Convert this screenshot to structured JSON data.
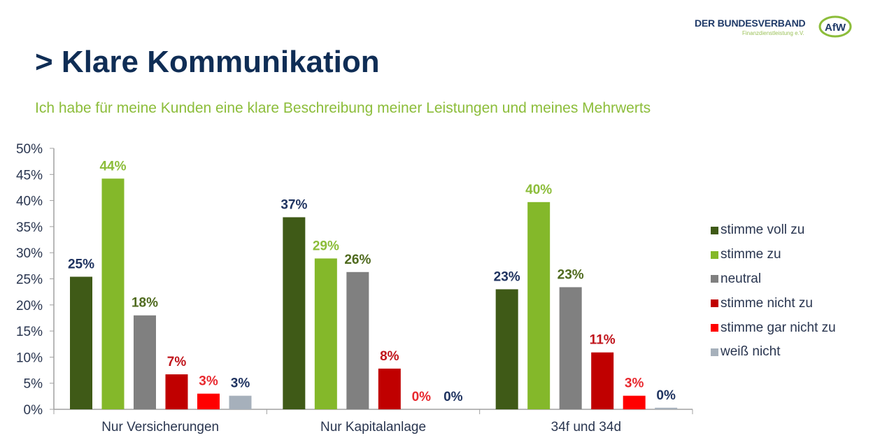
{
  "header": {
    "logo": {
      "main": "DER BUNDESVERBAND",
      "sub": "Finanzdienstleistung e.V.",
      "badge": "AfW"
    },
    "title": "> Klare Kommunikation",
    "subtitle": "Ich habe für meine Kunden eine klare Beschreibung meiner Leistungen und meines Mehrwerts"
  },
  "chart_data": {
    "type": "bar",
    "title": "",
    "xlabel": "",
    "ylabel": "",
    "ylim": [
      0,
      50
    ],
    "yticks": [
      "0%",
      "5%",
      "10%",
      "15%",
      "20%",
      "25%",
      "30%",
      "35%",
      "40%",
      "45%",
      "50%"
    ],
    "grid": false,
    "legend_position": "right",
    "categories": [
      "Nur Versicherungen",
      "Nur Kapitalanlage",
      "34f und 34d"
    ],
    "series": [
      {
        "name": "stimme voll zu",
        "color": "#3f5a17",
        "label_color": "#1f3360",
        "values": [
          25.4,
          36.8,
          23.0
        ],
        "labels": [
          "25%",
          "37%",
          "23%"
        ]
      },
      {
        "name": "stimme zu",
        "color": "#84b82a",
        "label_color": "#8cbd3a",
        "values": [
          44.2,
          28.9,
          39.7
        ],
        "labels": [
          "44%",
          "29%",
          "40%"
        ]
      },
      {
        "name": "neutral",
        "color": "#808080",
        "label_color": "#4f6a1e",
        "values": [
          18.0,
          26.3,
          23.4
        ],
        "labels": [
          "18%",
          "26%",
          "23%"
        ]
      },
      {
        "name": "stimme nicht zu",
        "color": "#c00000",
        "label_color": "#c0141b",
        "values": [
          6.7,
          7.8,
          10.9
        ],
        "labels": [
          "7%",
          "8%",
          "11%"
        ]
      },
      {
        "name": "stimme gar nicht zu",
        "color": "#ff0000",
        "label_color": "#e8282e",
        "values": [
          3.0,
          0,
          2.6
        ],
        "labels": [
          "3%",
          "0%",
          "3%"
        ]
      },
      {
        "name": "weiß nicht",
        "color": "#a6b0bb",
        "label_color": "#1f3360",
        "values": [
          2.6,
          0,
          0.3
        ],
        "labels": [
          "3%",
          "0%",
          "0%"
        ]
      }
    ]
  }
}
